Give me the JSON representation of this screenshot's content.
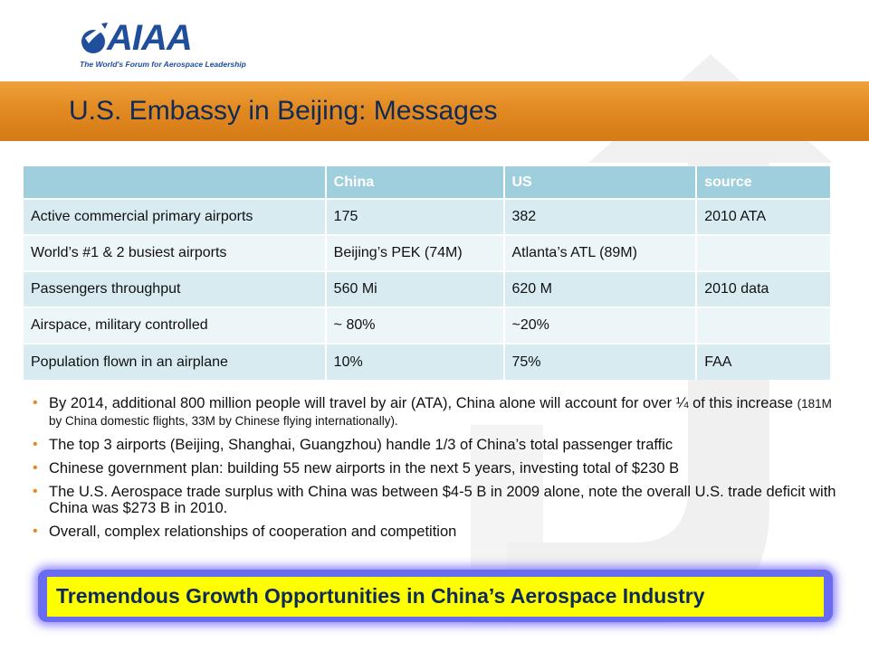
{
  "logo": {
    "letters": "AIAA",
    "tagline": "The World's Forum for Aerospace Leadership"
  },
  "title": "U.S. Embassy in Beijing: Messages",
  "table": {
    "headers": [
      "",
      "China",
      "US",
      "source"
    ],
    "rows": [
      [
        "Active commercial primary airports",
        "175",
        "382",
        "2010 ATA"
      ],
      [
        "World’s #1 & 2 busiest airports",
        "Beijing’s PEK (74M)",
        "Atlanta’s ATL (89M)",
        ""
      ],
      [
        "Passengers throughput",
        "560 Mi",
        "620 M",
        "2010 data"
      ],
      [
        "Airspace, military controlled",
        "~ 80%",
        "~20%",
        ""
      ],
      [
        "Population flown in an airplane",
        "10%",
        "75%",
        "FAA"
      ]
    ]
  },
  "bullets": [
    {
      "text": "By 2014, additional 800 million people will travel by air (ATA), China alone will account for over ¼ of this increase ",
      "small": "(181M by China domestic flights, 33M by Chinese flying internationally)."
    },
    {
      "text": "The top 3 airports (Beijing, Shanghai, Guangzhou) handle 1/3 of China’s total passenger traffic",
      "small": ""
    },
    {
      "text": "Chinese government plan: building 55 new airports in the next 5 years, investing total of $230 B",
      "small": ""
    },
    {
      "text": "The U.S. Aerospace trade surplus with China was between $4-5 B in 2009 alone, note the overall U.S. trade deficit with China was $273 B in 2010.",
      "small": ""
    },
    {
      "text": "Overall, complex relationships of cooperation and competition",
      "small": ""
    }
  ],
  "bullet_symbol": "•",
  "banner": "Tremendous Growth Opportunities in China’s Aerospace Industry",
  "colors": {
    "title_band": "#e28a22",
    "title_text": "#0f2a56",
    "table_header": "#9fcfdc",
    "row_odd": "#d7ebf1",
    "row_even": "#ecf5f8",
    "bullet": "#e08a1f",
    "banner_bg": "#ffff00",
    "banner_glow": "#6a6cf0",
    "logo": "#1f4e9a"
  }
}
